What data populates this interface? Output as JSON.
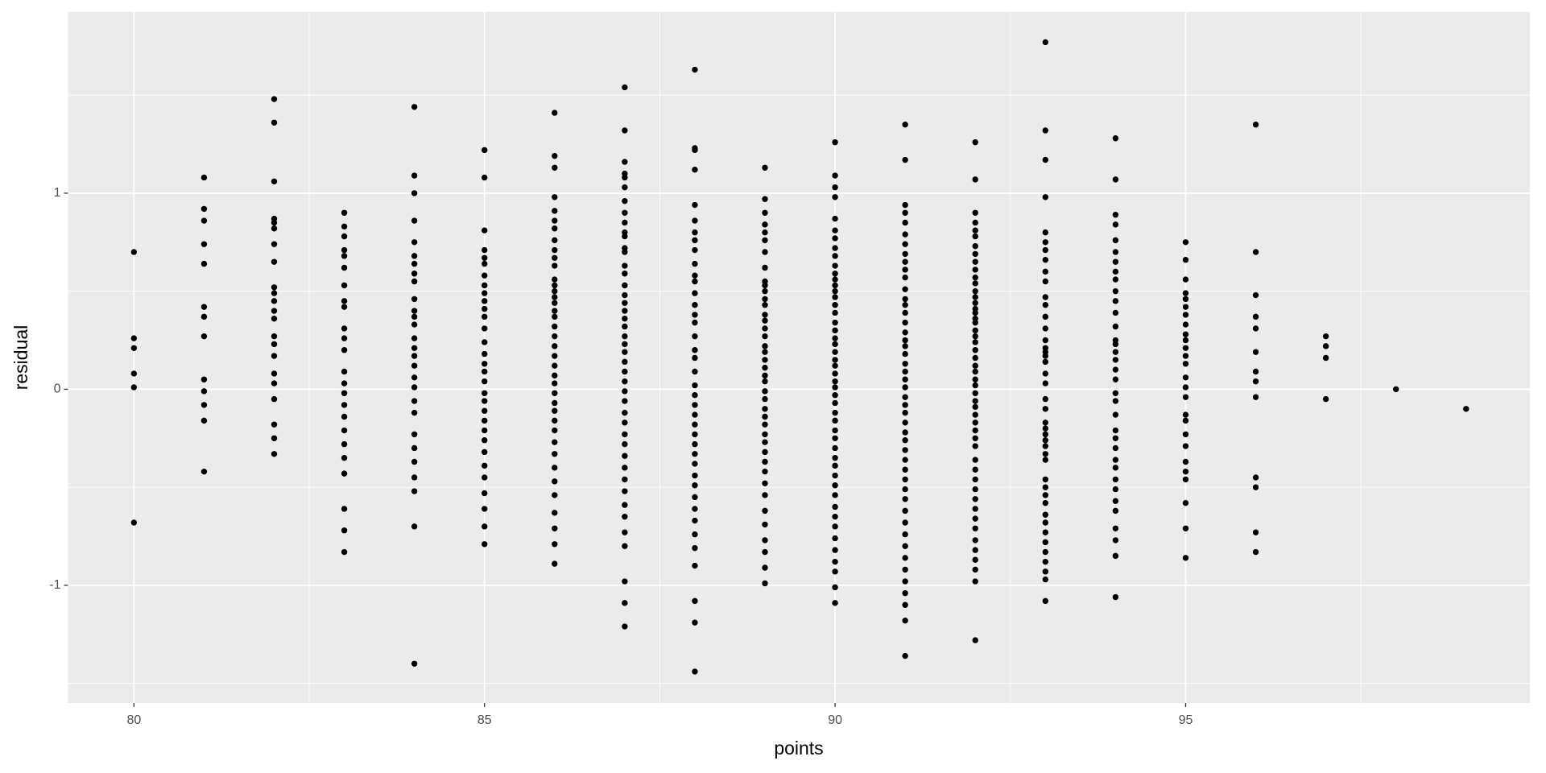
{
  "chart_data": {
    "type": "scatter",
    "x_label": "points",
    "y_label": "residual",
    "color": "#000000",
    "background": "#ebebeb",
    "grid": true,
    "xlim": [
      79.06,
      99.91
    ],
    "ylim": [
      -1.6,
      1.925
    ],
    "xticks": [
      80,
      85,
      90,
      95
    ],
    "yticks": [
      -1,
      0,
      1
    ],
    "x": [
      80,
      80,
      80,
      80,
      80,
      80,
      81,
      81,
      81,
      81,
      81,
      81,
      81,
      81,
      81,
      81,
      81,
      81,
      81,
      82,
      82,
      82,
      82,
      82,
      82,
      82,
      82,
      82,
      82,
      82,
      82,
      82,
      82,
      82,
      82,
      82,
      82,
      82,
      82,
      82,
      82,
      83,
      83,
      83,
      83,
      83,
      83,
      83,
      83,
      83,
      83,
      83,
      83,
      83,
      83,
      83,
      83,
      83,
      83,
      83,
      83,
      83,
      83,
      83,
      83,
      84,
      84,
      84,
      84,
      84,
      84,
      84,
      84,
      84,
      84,
      84,
      84,
      84,
      84,
      84,
      84,
      84,
      84,
      84,
      84,
      84,
      84,
      84,
      84,
      84,
      84,
      84,
      84,
      85,
      85,
      85,
      85,
      85,
      85,
      85,
      85,
      85,
      85,
      85,
      85,
      85,
      85,
      85,
      85,
      85,
      85,
      85,
      85,
      85,
      85,
      85,
      85,
      85,
      85,
      85,
      85,
      85,
      85,
      85,
      86,
      86,
      86,
      86,
      86,
      86,
      86,
      86,
      86,
      86,
      86,
      86,
      86,
      86,
      86,
      86,
      86,
      86,
      86,
      86,
      86,
      86,
      86,
      86,
      86,
      86,
      86,
      86,
      86,
      86,
      86,
      86,
      86,
      86,
      86,
      86,
      86,
      86,
      86,
      87,
      87,
      87,
      87,
      87,
      87,
      87,
      87,
      87,
      87,
      87,
      87,
      87,
      87,
      87,
      87,
      87,
      87,
      87,
      87,
      87,
      87,
      87,
      87,
      87,
      87,
      87,
      87,
      87,
      87,
      87,
      87,
      87,
      87,
      87,
      87,
      87,
      87,
      87,
      87,
      87,
      87,
      87,
      87,
      88,
      88,
      88,
      88,
      88,
      88,
      88,
      88,
      88,
      88,
      88,
      88,
      88,
      88,
      88,
      88,
      88,
      88,
      88,
      88,
      88,
      88,
      88,
      88,
      88,
      88,
      88,
      88,
      88,
      88,
      88,
      88,
      88,
      88,
      88,
      88,
      88,
      88,
      88,
      88,
      89,
      89,
      89,
      89,
      89,
      89,
      89,
      89,
      89,
      89,
      89,
      89,
      89,
      89,
      89,
      89,
      89,
      89,
      89,
      89,
      89,
      89,
      89,
      89,
      89,
      89,
      89,
      89,
      89,
      89,
      89,
      89,
      89,
      89,
      89,
      89,
      89,
      89,
      89,
      89,
      89,
      90,
      90,
      90,
      90,
      90,
      90,
      90,
      90,
      90,
      90,
      90,
      90,
      90,
      90,
      90,
      90,
      90,
      90,
      90,
      90,
      90,
      90,
      90,
      90,
      90,
      90,
      90,
      90,
      90,
      90,
      90,
      90,
      90,
      90,
      90,
      90,
      90,
      90,
      90,
      90,
      90,
      90,
      90,
      90,
      90,
      90,
      90,
      90,
      91,
      91,
      91,
      91,
      91,
      91,
      91,
      91,
      91,
      91,
      91,
      91,
      91,
      91,
      91,
      91,
      91,
      91,
      91,
      91,
      91,
      91,
      91,
      91,
      91,
      91,
      91,
      91,
      91,
      91,
      91,
      91,
      91,
      91,
      91,
      91,
      91,
      91,
      91,
      91,
      91,
      91,
      91,
      91,
      91,
      91,
      91,
      92,
      92,
      92,
      92,
      92,
      92,
      92,
      92,
      92,
      92,
      92,
      92,
      92,
      92,
      92,
      92,
      92,
      92,
      92,
      92,
      92,
      92,
      92,
      92,
      92,
      92,
      92,
      92,
      92,
      92,
      92,
      92,
      92,
      92,
      92,
      92,
      92,
      92,
      92,
      92,
      92,
      92,
      92,
      92,
      92,
      92,
      92,
      92,
      92,
      92,
      93,
      93,
      93,
      93,
      93,
      93,
      93,
      93,
      93,
      93,
      93,
      93,
      93,
      93,
      93,
      93,
      93,
      93,
      93,
      93,
      93,
      93,
      93,
      93,
      93,
      93,
      93,
      93,
      93,
      93,
      93,
      93,
      93,
      93,
      93,
      93,
      93,
      93,
      93,
      93,
      93,
      93,
      93,
      94,
      94,
      94,
      94,
      94,
      94,
      94,
      94,
      94,
      94,
      94,
      94,
      94,
      94,
      94,
      94,
      94,
      94,
      94,
      94,
      94,
      94,
      94,
      94,
      94,
      94,
      94,
      94,
      94,
      94,
      94,
      94,
      94,
      94,
      94,
      95,
      95,
      95,
      95,
      95,
      95,
      95,
      95,
      95,
      95,
      95,
      95,
      95,
      95,
      95,
      95,
      95,
      95,
      95,
      95,
      95,
      95,
      95,
      95,
      95,
      95,
      96,
      96,
      96,
      96,
      96,
      96,
      96,
      96,
      96,
      96,
      96,
      96,
      96,
      97,
      97,
      97,
      97,
      98,
      99
    ],
    "values": [
      0.7,
      0.26,
      0.21,
      0.08,
      0.01,
      -0.68,
      1.08,
      0.92,
      0.86,
      0.74,
      0.64,
      0.42,
      0.37,
      0.27,
      0.05,
      -0.01,
      -0.08,
      -0.16,
      -0.42,
      1.48,
      1.36,
      1.06,
      0.87,
      0.85,
      0.82,
      0.74,
      0.65,
      0.52,
      0.49,
      0.45,
      0.4,
      0.36,
      0.27,
      0.23,
      0.17,
      0.08,
      0.03,
      -0.05,
      -0.18,
      -0.25,
      -0.33,
      0.9,
      0.83,
      0.78,
      0.71,
      0.68,
      0.62,
      0.53,
      0.45,
      0.42,
      0.31,
      0.26,
      0.2,
      0.09,
      0.03,
      -0.02,
      -0.08,
      -0.14,
      -0.21,
      -0.28,
      -0.35,
      -0.43,
      -0.61,
      -0.72,
      -0.83,
      1.44,
      1.09,
      1.0,
      0.86,
      0.75,
      0.68,
      0.64,
      0.59,
      0.55,
      0.46,
      0.4,
      0.37,
      0.33,
      0.26,
      0.21,
      0.17,
      0.12,
      0.06,
      0.01,
      -0.06,
      -0.12,
      -0.23,
      -0.3,
      -0.37,
      -0.45,
      -0.52,
      -0.7,
      -1.4,
      1.22,
      1.08,
      0.81,
      0.71,
      0.67,
      0.64,
      0.58,
      0.53,
      0.49,
      0.45,
      0.41,
      0.37,
      0.31,
      0.24,
      0.18,
      0.13,
      0.09,
      0.04,
      -0.02,
      -0.06,
      -0.11,
      -0.16,
      -0.21,
      -0.26,
      -0.32,
      -0.39,
      -0.45,
      -0.53,
      -0.61,
      -0.7,
      -0.79,
      1.41,
      1.19,
      1.13,
      0.98,
      0.91,
      0.86,
      0.82,
      0.76,
      0.71,
      0.67,
      0.63,
      0.56,
      0.53,
      0.5,
      0.47,
      0.44,
      0.4,
      0.37,
      0.32,
      0.27,
      0.22,
      0.17,
      0.12,
      0.07,
      0.03,
      -0.02,
      -0.07,
      -0.11,
      -0.16,
      -0.21,
      -0.27,
      -0.33,
      -0.4,
      -0.47,
      -0.54,
      -0.63,
      -0.71,
      -0.79,
      -0.89,
      1.54,
      1.32,
      1.16,
      1.1,
      1.08,
      1.03,
      0.96,
      0.9,
      0.85,
      0.8,
      0.78,
      0.72,
      0.7,
      0.63,
      0.59,
      0.53,
      0.48,
      0.44,
      0.4,
      0.36,
      0.32,
      0.27,
      0.23,
      0.19,
      0.14,
      0.09,
      0.04,
      -0.01,
      -0.06,
      -0.12,
      -0.17,
      -0.23,
      -0.28,
      -0.34,
      -0.4,
      -0.46,
      -0.52,
      -0.59,
      -0.65,
      -0.73,
      -0.8,
      -0.98,
      -1.09,
      -1.21,
      1.63,
      1.23,
      1.22,
      1.12,
      0.94,
      0.86,
      0.8,
      0.76,
      0.71,
      0.64,
      0.58,
      0.55,
      0.49,
      0.43,
      0.38,
      0.34,
      0.27,
      0.2,
      0.16,
      0.09,
      0.02,
      -0.03,
      -0.08,
      -0.13,
      -0.18,
      -0.23,
      -0.28,
      -0.33,
      -0.38,
      -0.44,
      -0.49,
      -0.55,
      -0.61,
      -0.67,
      -0.74,
      -0.81,
      -0.9,
      -1.08,
      -1.19,
      -1.44,
      1.13,
      0.97,
      0.9,
      0.84,
      0.8,
      0.76,
      0.7,
      0.62,
      0.55,
      0.53,
      0.5,
      0.46,
      0.43,
      0.38,
      0.35,
      0.31,
      0.27,
      0.22,
      0.19,
      0.15,
      0.11,
      0.07,
      0.04,
      -0.01,
      -0.05,
      -0.1,
      -0.14,
      -0.18,
      -0.23,
      -0.27,
      -0.32,
      -0.37,
      -0.42,
      -0.48,
      -0.54,
      -0.62,
      -0.69,
      -0.77,
      -0.83,
      -0.91,
      -0.99,
      1.26,
      1.09,
      1.03,
      0.98,
      0.87,
      0.81,
      0.77,
      0.72,
      0.68,
      0.63,
      0.59,
      0.56,
      0.53,
      0.5,
      0.47,
      0.43,
      0.39,
      0.34,
      0.3,
      0.26,
      0.23,
      0.19,
      0.15,
      0.12,
      0.08,
      0.04,
      0.01,
      -0.03,
      -0.07,
      -0.12,
      -0.16,
      -0.21,
      -0.25,
      -0.3,
      -0.35,
      -0.39,
      -0.44,
      -0.49,
      -0.54,
      -0.6,
      -0.65,
      -0.7,
      -0.76,
      -0.82,
      -0.88,
      -0.93,
      -1.01,
      -1.09,
      1.35,
      1.17,
      0.94,
      0.9,
      0.85,
      0.79,
      0.74,
      0.69,
      0.65,
      0.61,
      0.57,
      0.51,
      0.46,
      0.43,
      0.39,
      0.34,
      0.29,
      0.25,
      0.22,
      0.18,
      0.13,
      0.09,
      0.05,
      0.01,
      -0.04,
      -0.08,
      -0.12,
      -0.17,
      -0.22,
      -0.26,
      -0.31,
      -0.36,
      -0.41,
      -0.46,
      -0.51,
      -0.56,
      -0.62,
      -0.68,
      -0.74,
      -0.8,
      -0.86,
      -0.92,
      -0.98,
      -1.04,
      -1.1,
      -1.18,
      -1.36,
      1.26,
      1.07,
      0.9,
      0.85,
      0.81,
      0.78,
      0.73,
      0.69,
      0.65,
      0.61,
      0.57,
      0.54,
      0.5,
      0.47,
      0.44,
      0.41,
      0.39,
      0.36,
      0.34,
      0.3,
      0.27,
      0.24,
      0.2,
      0.16,
      0.12,
      0.09,
      0.05,
      0.02,
      -0.02,
      -0.06,
      -0.09,
      -0.13,
      -0.17,
      -0.21,
      -0.25,
      -0.29,
      -0.36,
      -0.41,
      -0.46,
      -0.51,
      -0.56,
      -0.61,
      -0.66,
      -0.71,
      -0.77,
      -0.82,
      -0.87,
      -0.92,
      -0.98,
      -1.28,
      1.77,
      1.32,
      1.17,
      0.98,
      0.8,
      0.75,
      0.71,
      0.66,
      0.6,
      0.55,
      0.47,
      0.43,
      0.37,
      0.31,
      0.25,
      0.21,
      0.19,
      0.17,
      0.14,
      0.08,
      0.03,
      -0.05,
      -0.1,
      -0.17,
      -0.2,
      -0.23,
      -0.26,
      -0.29,
      -0.33,
      -0.36,
      -0.46,
      -0.5,
      -0.54,
      -0.58,
      -0.64,
      -0.68,
      -0.73,
      -0.78,
      -0.83,
      -0.88,
      -0.93,
      -0.97,
      -1.08,
      1.28,
      1.07,
      0.89,
      0.84,
      0.76,
      0.7,
      0.65,
      0.6,
      0.56,
      0.5,
      0.45,
      0.39,
      0.32,
      0.25,
      0.23,
      0.19,
      0.15,
      0.1,
      0.05,
      -0.02,
      -0.06,
      -0.13,
      -0.21,
      -0.25,
      -0.3,
      -0.36,
      -0.4,
      -0.46,
      -0.51,
      -0.57,
      -0.62,
      -0.71,
      -0.77,
      -0.85,
      -1.06,
      0.75,
      0.66,
      0.56,
      0.49,
      0.46,
      0.42,
      0.38,
      0.33,
      0.28,
      0.25,
      0.21,
      0.17,
      0.13,
      0.06,
      0.01,
      -0.04,
      -0.13,
      -0.16,
      -0.23,
      -0.29,
      -0.37,
      -0.42,
      -0.46,
      -0.58,
      -0.71,
      -0.86,
      1.35,
      0.7,
      0.48,
      0.37,
      0.31,
      0.19,
      0.09,
      0.04,
      -0.04,
      -0.45,
      -0.5,
      -0.73,
      -0.83,
      0.27,
      0.22,
      0.16,
      -0.05,
      0.0,
      -0.1
    ]
  }
}
